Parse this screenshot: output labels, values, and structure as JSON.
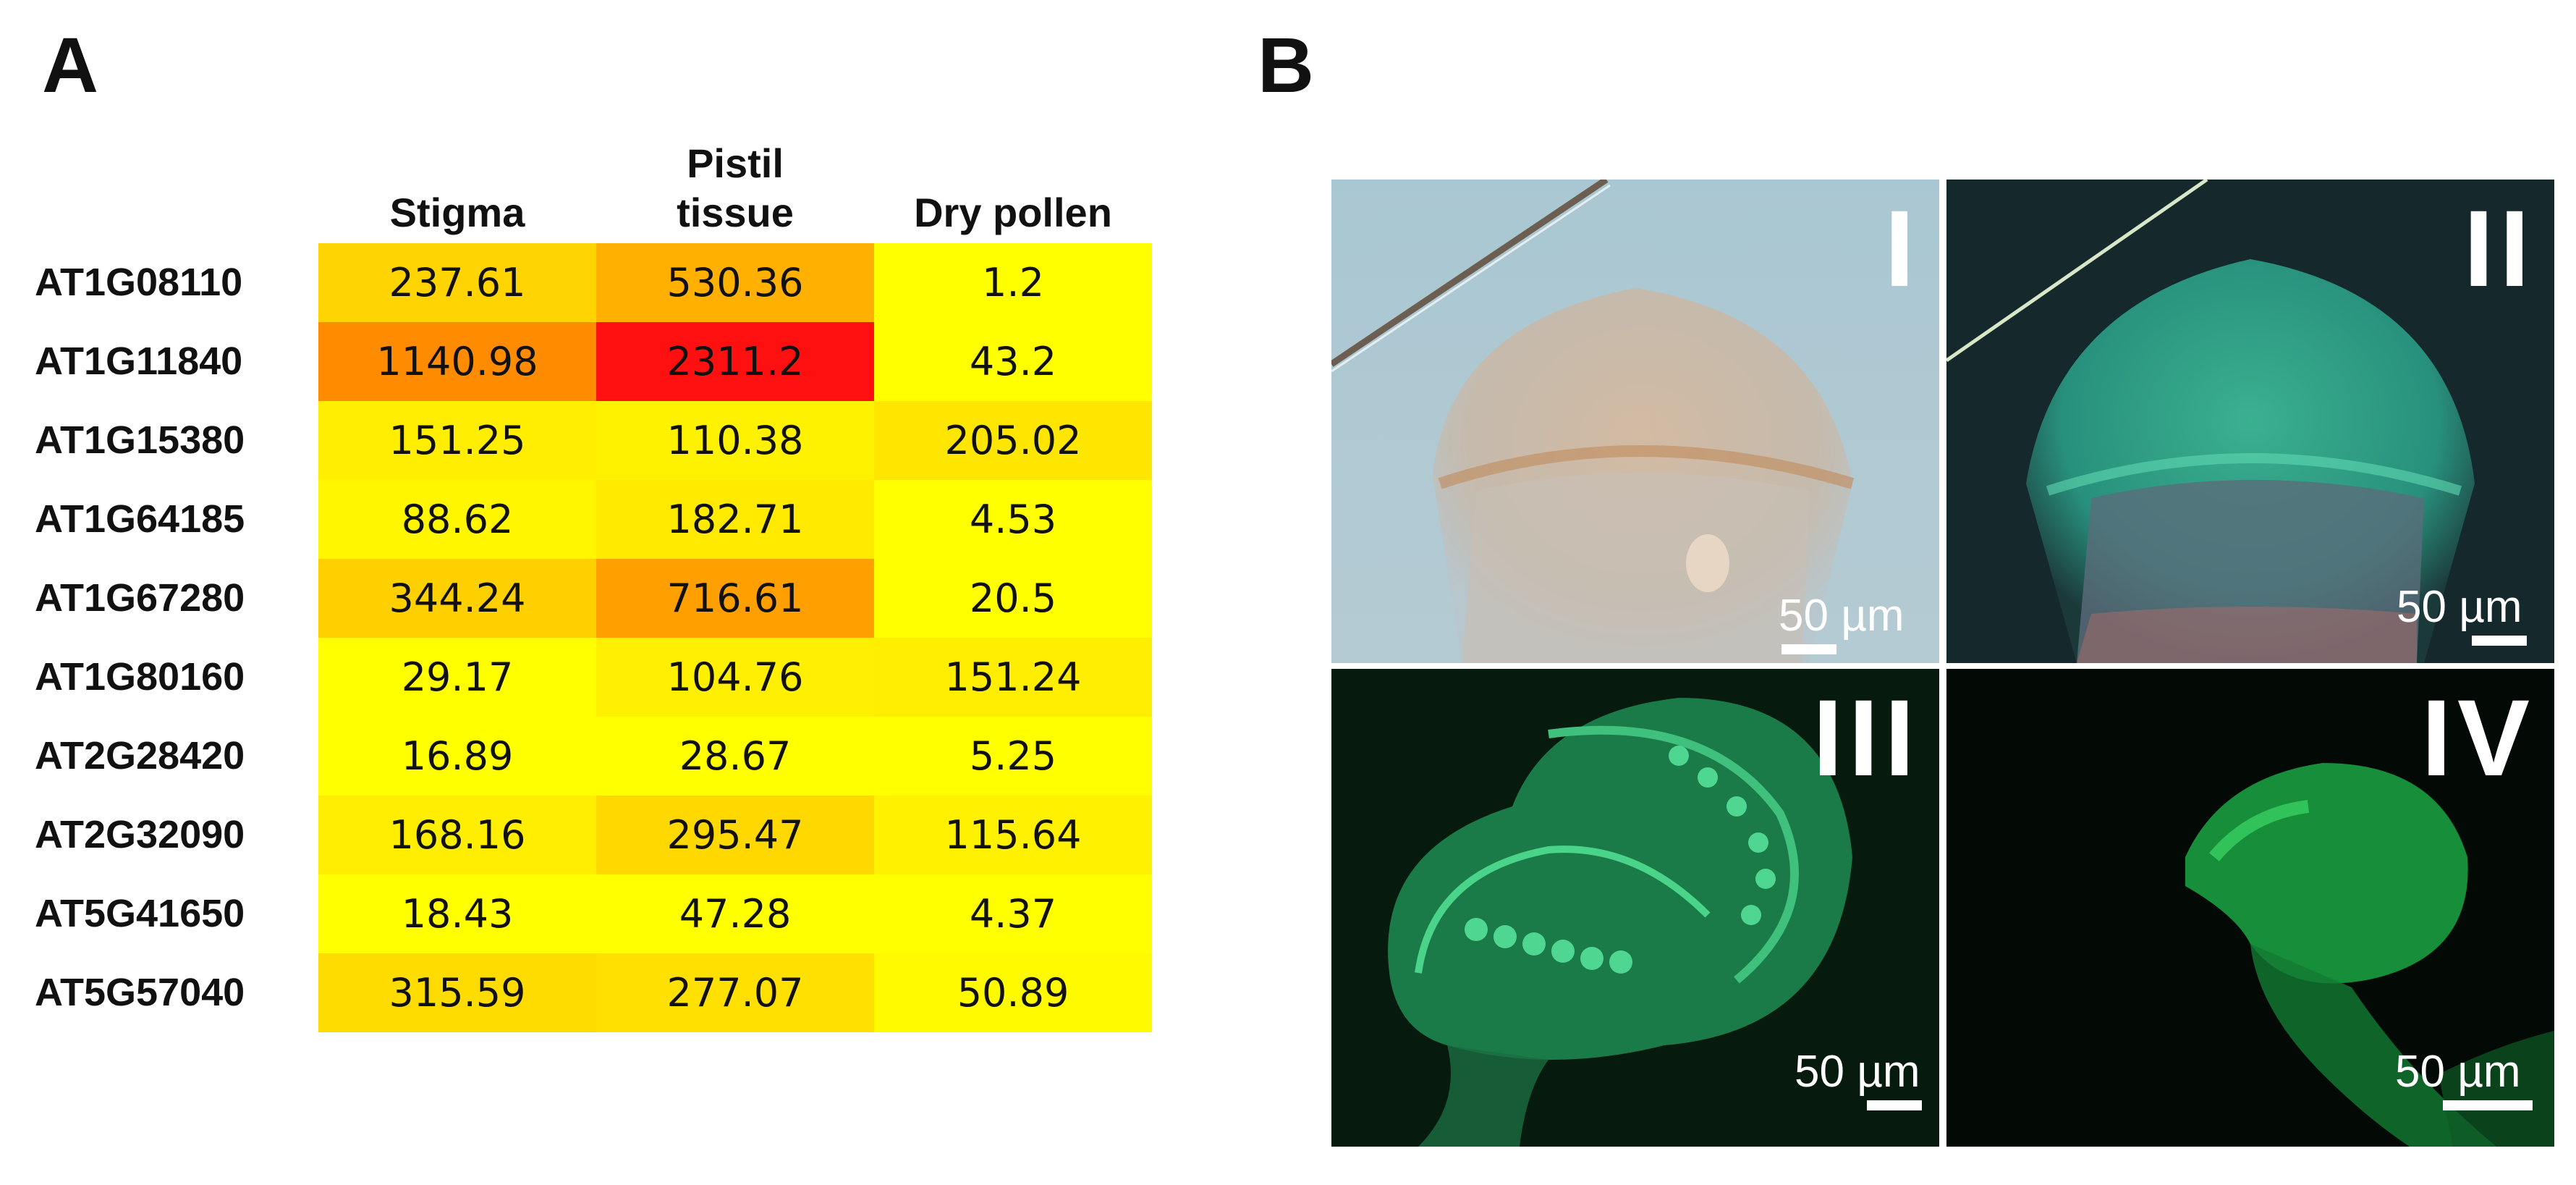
{
  "panel_a": {
    "letter": "A",
    "columns": [
      "Stigma",
      "Pistil\ntissue",
      "Dry pollen"
    ],
    "genes": [
      "AT1G08110",
      "AT1G11840",
      "AT1G15380",
      "AT1G64185",
      "AT1G67280",
      "AT1G80160",
      "AT2G28420",
      "AT2G32090",
      "AT5G41650",
      "AT5G57040"
    ],
    "values": [
      [
        "237.61",
        "530.36",
        "1.2"
      ],
      [
        "1140.98",
        "2311.2",
        "43.2"
      ],
      [
        "151.25",
        "110.38",
        "205.02"
      ],
      [
        "88.62",
        "182.71",
        "4.53"
      ],
      [
        "344.24",
        "716.61",
        "20.5"
      ],
      [
        "29.17",
        "104.76",
        "151.24"
      ],
      [
        "16.89",
        "28.67",
        "5.25"
      ],
      [
        "168.16",
        "295.47",
        "115.64"
      ],
      [
        "18.43",
        "47.28",
        "4.37"
      ],
      [
        "315.59",
        "277.07",
        "50.89"
      ]
    ],
    "colors": [
      [
        "#ffd400",
        "#ffb000",
        "#ffff00"
      ],
      [
        "#ff8c00",
        "#ff1010",
        "#ffff00"
      ],
      [
        "#ffee00",
        "#fff200",
        "#ffe600"
      ],
      [
        "#fff600",
        "#ffea00",
        "#ffff00"
      ],
      [
        "#ffd000",
        "#ffa000",
        "#ffff00"
      ],
      [
        "#ffff00",
        "#ffef00",
        "#ffee00"
      ],
      [
        "#ffff00",
        "#ffff00",
        "#ffff00"
      ],
      [
        "#ffee00",
        "#ffd800",
        "#fff100"
      ],
      [
        "#ffff00",
        "#ffff00",
        "#ffff00"
      ],
      [
        "#ffdc00",
        "#ffe000",
        "#fffa00"
      ]
    ]
  },
  "panel_b": {
    "letter": "B",
    "images": [
      {
        "label": "I",
        "scale": "50 µm"
      },
      {
        "label": "II",
        "scale": "50 µm"
      },
      {
        "label": "III",
        "scale": "50 µm"
      },
      {
        "label": "IV",
        "scale": "50 µm"
      }
    ]
  }
}
